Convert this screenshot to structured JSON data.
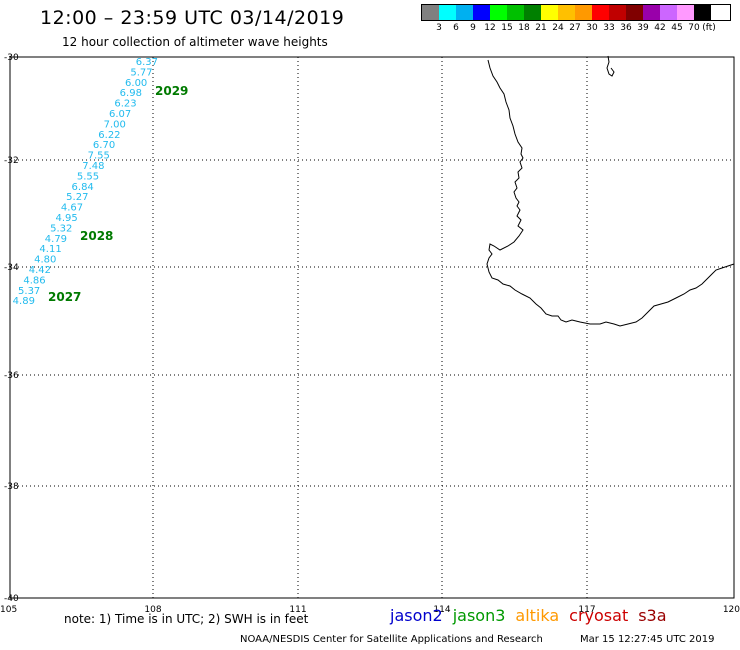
{
  "header": {
    "title": "12:00 – 23:59 UTC 03/14/2019",
    "subtitle": "12 hour collection of altimeter wave heights"
  },
  "legend": {
    "colors": [
      "#808080",
      "#00ffff",
      "#00b0f0",
      "#0000ff",
      "#00ff00",
      "#00c000",
      "#008000",
      "#ffff00",
      "#ffc000",
      "#ff9900",
      "#ff0000",
      "#c00000",
      "#800000",
      "#9900aa",
      "#cc66ff",
      "#ff99ff",
      "#000000"
    ],
    "labels": [
      "3",
      "6",
      "9",
      "12",
      "15",
      "18",
      "21",
      "24",
      "27",
      "30",
      "33",
      "36",
      "39",
      "42",
      "45",
      "70"
    ],
    "unit": "(ft)"
  },
  "axes": {
    "lat_labels": [
      "-30",
      "-32",
      "-34",
      "-36",
      "-38",
      "-40"
    ],
    "lon_labels": [
      "105",
      "108",
      "111",
      "114",
      "117",
      "120"
    ]
  },
  "passes": [
    {
      "id": "2029",
      "heights": [
        "6.37",
        "5.77",
        "6.00",
        "6.98",
        "6.23",
        "6.07",
        "7.00",
        "6.22",
        "6.70",
        "7.55",
        "7.48"
      ]
    },
    {
      "id": "2028",
      "heights": [
        "5.55",
        "6.84",
        "5.27",
        "4.67",
        "4.95",
        "5.32",
        "4.79",
        "4.11",
        "4.80",
        "4.42"
      ]
    },
    {
      "id": "2027",
      "heights": [
        "4.86",
        "5.37",
        "4.89"
      ]
    }
  ],
  "footer": {
    "note": "note: 1) Time is in UTC; 2) SWH is in feet",
    "satellites": [
      {
        "name": "jason2",
        "color": "#0000cc"
      },
      {
        "name": "jason3",
        "color": "#009900"
      },
      {
        "name": "altika",
        "color": "#ff9900"
      },
      {
        "name": "cryosat",
        "color": "#cc0000"
      },
      {
        "name": "s3a",
        "color": "#990000"
      }
    ],
    "credit": "NOAA/NESDIS Center for Satellite Applications and Research",
    "timestamp": "Mar 15 12:27:45 UTC 2019"
  }
}
